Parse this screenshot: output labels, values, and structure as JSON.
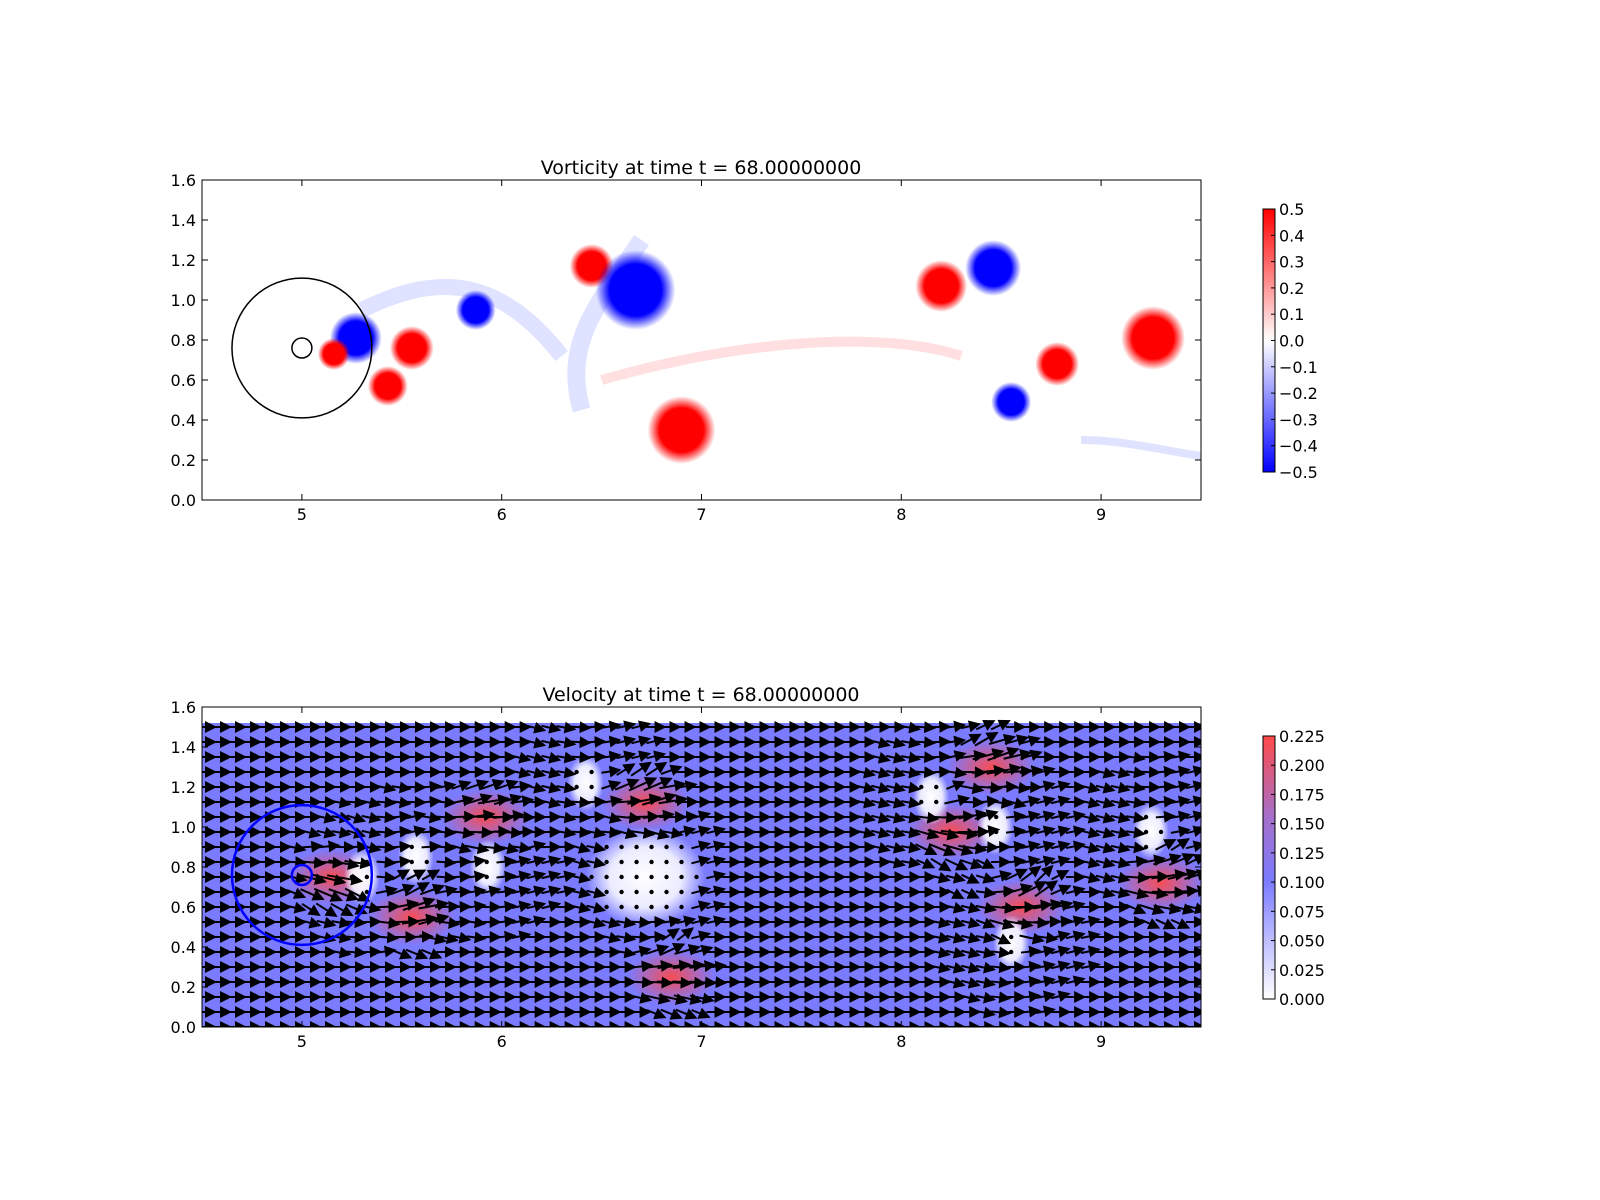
{
  "chart_data": [
    {
      "type": "heatmap",
      "title": "Vorticity at time t =    68.00000000",
      "xlabel": "",
      "ylabel": "",
      "xlim": [
        4.5,
        9.5
      ],
      "ylim": [
        0.0,
        1.6
      ],
      "xticks": [
        "5",
        "6",
        "7",
        "8",
        "9"
      ],
      "yticks": [
        "0.0",
        "0.2",
        "0.4",
        "0.6",
        "0.8",
        "1.0",
        "1.2",
        "1.4",
        "1.6"
      ],
      "colormap": "bwr",
      "colors": {
        "negative": "#0000ff",
        "zero": "#ffffff",
        "positive": "#ff0000"
      },
      "colorbar": {
        "min": -0.5,
        "max": 0.5,
        "ticks": [
          "0.5",
          "0.4",
          "0.3",
          "0.2",
          "0.1",
          "0.0",
          "−0.1",
          "−0.2",
          "−0.3",
          "−0.4",
          "−0.5"
        ]
      },
      "vortices": [
        {
          "x": 5.55,
          "y": 0.76,
          "value": 0.5
        },
        {
          "x": 5.43,
          "y": 0.57,
          "value": 0.5
        },
        {
          "x": 5.87,
          "y": 0.95,
          "value": -0.5
        },
        {
          "x": 6.45,
          "y": 1.17,
          "value": 0.5
        },
        {
          "x": 6.67,
          "y": 1.05,
          "value": -0.5
        },
        {
          "x": 6.9,
          "y": 0.35,
          "value": 0.5
        },
        {
          "x": 8.2,
          "y": 1.07,
          "value": 0.5
        },
        {
          "x": 8.46,
          "y": 1.16,
          "value": -0.5
        },
        {
          "x": 8.78,
          "y": 0.68,
          "value": 0.4
        },
        {
          "x": 8.55,
          "y": 0.49,
          "value": -0.5
        },
        {
          "x": 9.26,
          "y": 0.81,
          "value": 0.5
        },
        {
          "x": 5.27,
          "y": 0.81,
          "value": -0.5
        },
        {
          "x": 5.16,
          "y": 0.73,
          "value": 0.5
        }
      ],
      "annotations": {
        "obstacle": {
          "x": 5.0,
          "y": 0.76,
          "radius": 0.05
        },
        "ring": {
          "x": 5.0,
          "y": 0.76,
          "radius": 0.35
        },
        "ring_color": "#000000"
      }
    },
    {
      "type": "heatmap",
      "title": "Velocity at time t =    68.00000000",
      "xlabel": "",
      "ylabel": "",
      "xlim": [
        4.5,
        9.5
      ],
      "ylim": [
        0.0,
        1.6
      ],
      "xticks": [
        "5",
        "6",
        "7",
        "8",
        "9"
      ],
      "yticks": [
        "0.0",
        "0.2",
        "0.4",
        "0.6",
        "0.8",
        "1.0",
        "1.2",
        "1.4",
        "1.6"
      ],
      "field_ylim": [
        0.0,
        1.52
      ],
      "colormap": "white-blue-red",
      "colors": {
        "low": "#ffffff",
        "mid": "#7b7bff",
        "high": "#ff4a4a",
        "arrows": "#000000"
      },
      "colorbar": {
        "min": 0.0,
        "max": 0.225,
        "ticks": [
          "0.225",
          "0.200",
          "0.175",
          "0.150",
          "0.125",
          "0.100",
          "0.075",
          "0.050",
          "0.025",
          "0.000"
        ]
      },
      "fast_regions": [
        {
          "x": 6.72,
          "y": 1.12
        },
        {
          "x": 6.85,
          "y": 0.25
        },
        {
          "x": 5.15,
          "y": 0.75
        },
        {
          "x": 5.55,
          "y": 0.55
        },
        {
          "x": 5.92,
          "y": 1.05
        },
        {
          "x": 8.45,
          "y": 1.3
        },
        {
          "x": 8.25,
          "y": 0.98
        },
        {
          "x": 8.6,
          "y": 0.6
        },
        {
          "x": 9.3,
          "y": 0.72
        }
      ],
      "slow_regions": [
        {
          "x": 6.72,
          "y": 0.75
        },
        {
          "x": 5.57,
          "y": 0.85
        },
        {
          "x": 5.93,
          "y": 0.8
        },
        {
          "x": 5.3,
          "y": 0.75
        },
        {
          "x": 8.47,
          "y": 1.0
        },
        {
          "x": 9.25,
          "y": 0.98
        },
        {
          "x": 8.55,
          "y": 0.42
        },
        {
          "x": 8.15,
          "y": 1.15
        },
        {
          "x": 6.42,
          "y": 1.22
        }
      ],
      "annotations": {
        "obstacle": {
          "x": 5.0,
          "y": 0.76,
          "radius": 0.05
        },
        "ring": {
          "x": 5.0,
          "y": 0.76,
          "radius": 0.35
        },
        "ring_color": "#0000ff"
      }
    }
  ]
}
